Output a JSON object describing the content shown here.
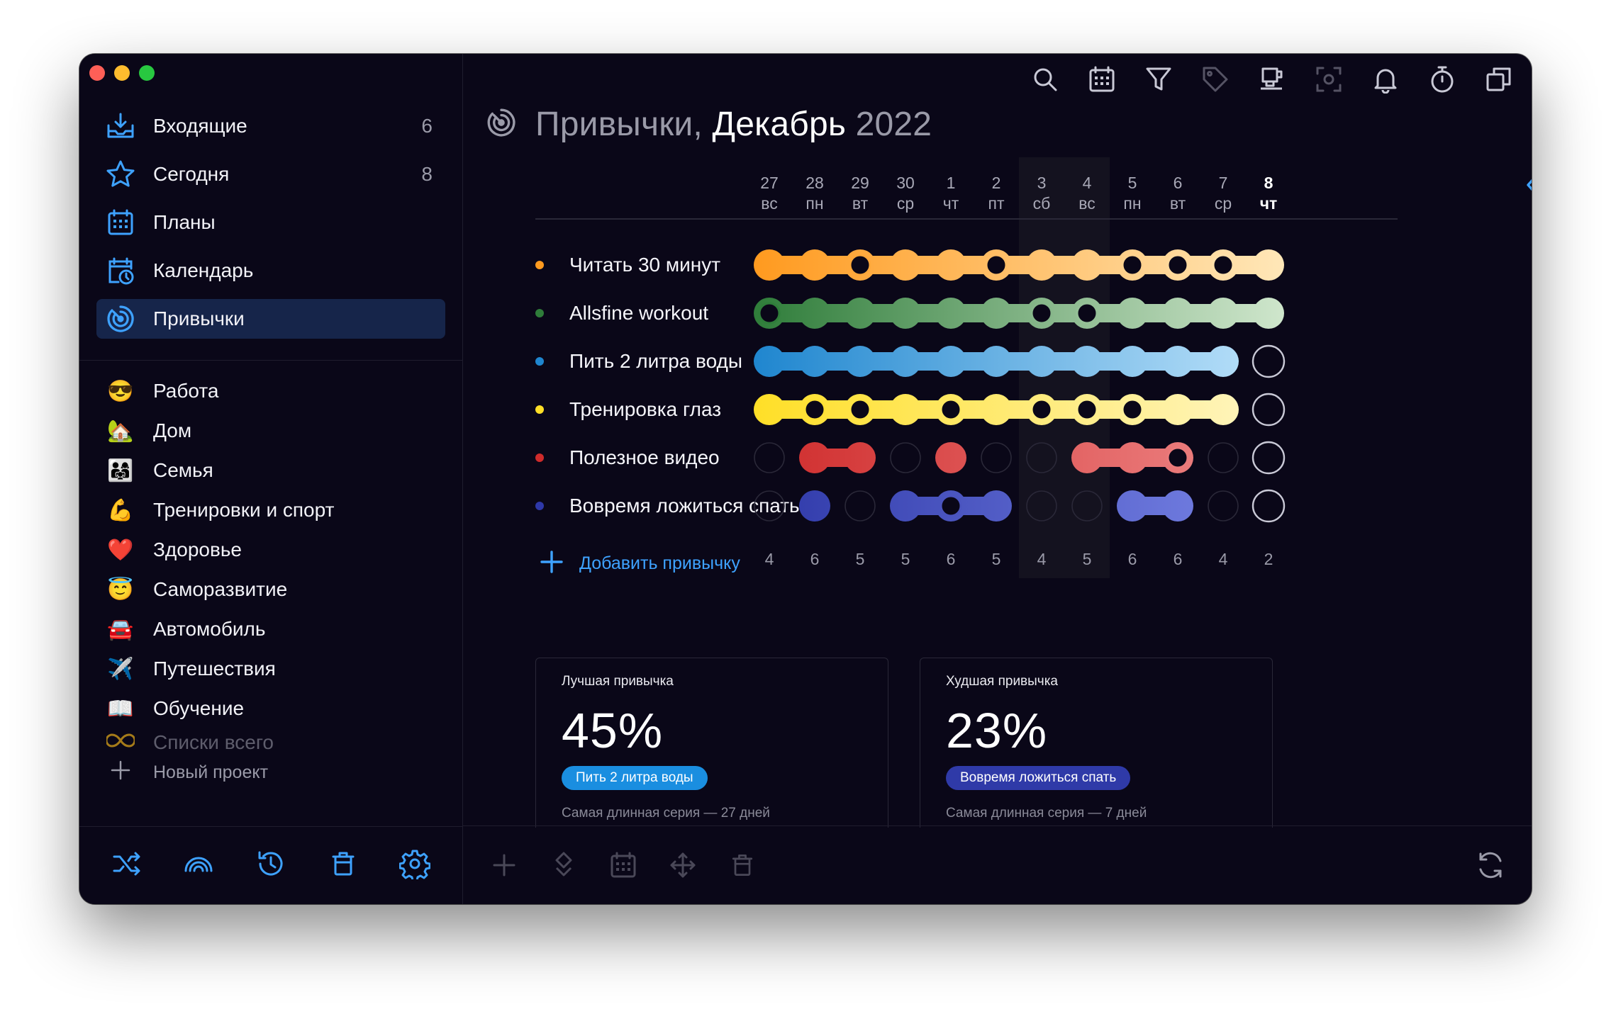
{
  "sidebar": {
    "nav": [
      {
        "label": "Входящие",
        "count": "6",
        "icon": "inbox-tray-icon"
      },
      {
        "label": "Сегодня",
        "count": "8",
        "icon": "star-icon"
      },
      {
        "label": "Планы",
        "count": "",
        "icon": "calendar-grid-icon"
      },
      {
        "label": "Календарь",
        "count": "",
        "icon": "calendar-clock-icon"
      },
      {
        "label": "Привычки",
        "count": "",
        "icon": "habits-target-icon",
        "active": true
      }
    ],
    "projects": [
      {
        "label": "Работа",
        "emoji": "😎"
      },
      {
        "label": "Дом",
        "emoji": "🏡"
      },
      {
        "label": "Семья",
        "emoji": "👨‍👩‍👧"
      },
      {
        "label": "Тренировки и спорт",
        "emoji": "💪"
      },
      {
        "label": "Здоровье",
        "emoji": "❤️"
      },
      {
        "label": "Саморазвитие",
        "emoji": "😇"
      },
      {
        "label": "Автомобиль",
        "emoji": "🚘"
      },
      {
        "label": "Путешествия",
        "emoji": "✈️"
      },
      {
        "label": "Обучение",
        "emoji": "📖"
      }
    ],
    "faded_project": "Списки всего",
    "new_project": "Новый проект",
    "bottom_icons": [
      "shuffle-icon",
      "rainbow-icon",
      "history-icon",
      "trash-icon",
      "settings-gear-icon"
    ]
  },
  "toolbar": [
    "search-icon",
    "calendar-icon",
    "filter-icon",
    "tag-icon",
    "coffee-icon",
    "focus-icon",
    "bell-icon",
    "stopwatch-icon",
    "copy-icon"
  ],
  "header": {
    "part1": "Привычки,",
    "month": "Декабрь",
    "year": "2022"
  },
  "days": [
    {
      "num": "27",
      "dow": "вс",
      "weekend": false
    },
    {
      "num": "28",
      "dow": "пн",
      "weekend": false
    },
    {
      "num": "29",
      "dow": "вт",
      "weekend": false
    },
    {
      "num": "30",
      "dow": "ср",
      "weekend": false
    },
    {
      "num": "1",
      "dow": "чт",
      "weekend": false
    },
    {
      "num": "2",
      "dow": "пт",
      "weekend": false
    },
    {
      "num": "3",
      "dow": "сб",
      "weekend": true
    },
    {
      "num": "4",
      "dow": "вс",
      "weekend": true
    },
    {
      "num": "5",
      "dow": "пн",
      "weekend": false
    },
    {
      "num": "6",
      "dow": "вт",
      "weekend": false
    },
    {
      "num": "7",
      "dow": "ср",
      "weekend": false
    },
    {
      "num": "8",
      "dow": "чт",
      "weekend": false,
      "today": true
    }
  ],
  "counts": [
    "4",
    "6",
    "5",
    "5",
    "6",
    "5",
    "4",
    "5",
    "6",
    "6",
    "4",
    "2"
  ],
  "habits": [
    {
      "name": "Читать 30 минут",
      "color": "#ff9a1f",
      "light": "#ffe7b8",
      "done": [
        1,
        1,
        1,
        1,
        1,
        1,
        1,
        1,
        1,
        1,
        1,
        1
      ],
      "rings": [
        2,
        5,
        8,
        9,
        10
      ]
    },
    {
      "name": "Allsfine workout",
      "color": "#2f7d3a",
      "light": "#cfe6cc",
      "done": [
        1,
        1,
        1,
        1,
        1,
        1,
        1,
        1,
        1,
        1,
        1,
        1
      ],
      "rings": [
        0,
        6,
        7
      ]
    },
    {
      "name": "Пить 2 литра воды",
      "color": "#1f86cf",
      "light": "#bfe4fb",
      "done": [
        1,
        1,
        1,
        1,
        1,
        1,
        1,
        1,
        1,
        1,
        1,
        0
      ],
      "rings": []
    },
    {
      "name": "Тренировка глаз",
      "color": "#ffdf27",
      "light": "#fff6c6",
      "done": [
        1,
        1,
        1,
        1,
        1,
        1,
        1,
        1,
        1,
        1,
        1,
        0
      ],
      "rings": [
        1,
        2,
        4,
        6,
        7,
        8
      ]
    },
    {
      "name": "Полезное видео",
      "color": "#cf2b2b",
      "light": "#f08b8b",
      "done": [
        0,
        1,
        1,
        0,
        1,
        0,
        0,
        1,
        1,
        1,
        0,
        0
      ],
      "rings": [
        9
      ]
    },
    {
      "name": "Вовремя ложиться спать",
      "color": "#2e38a8",
      "light": "#7a86e8",
      "done": [
        0,
        1,
        0,
        1,
        1,
        1,
        0,
        0,
        1,
        1,
        0,
        0
      ],
      "rings": [
        4
      ]
    }
  ],
  "add_habit": "Добавить привычку",
  "cards": [
    {
      "title": "Лучшая привычка",
      "pct": "45%",
      "badge": "Пить 2 литра воды",
      "badge_color": "#1a8ee0",
      "foot": "Самая длинная серия — 27 дней"
    },
    {
      "title": "Худшая привычка",
      "pct": "23%",
      "badge": "Вовремя ложиться спать",
      "badge_color": "#2f3aa8",
      "foot": "Самая длинная серия — 7 дней"
    }
  ],
  "main_bottom_icons": [
    "add-icon",
    "diamond-move-icon",
    "calendar-icon",
    "move-arrows-icon",
    "trash-icon"
  ],
  "accent": "#3ea2ff"
}
